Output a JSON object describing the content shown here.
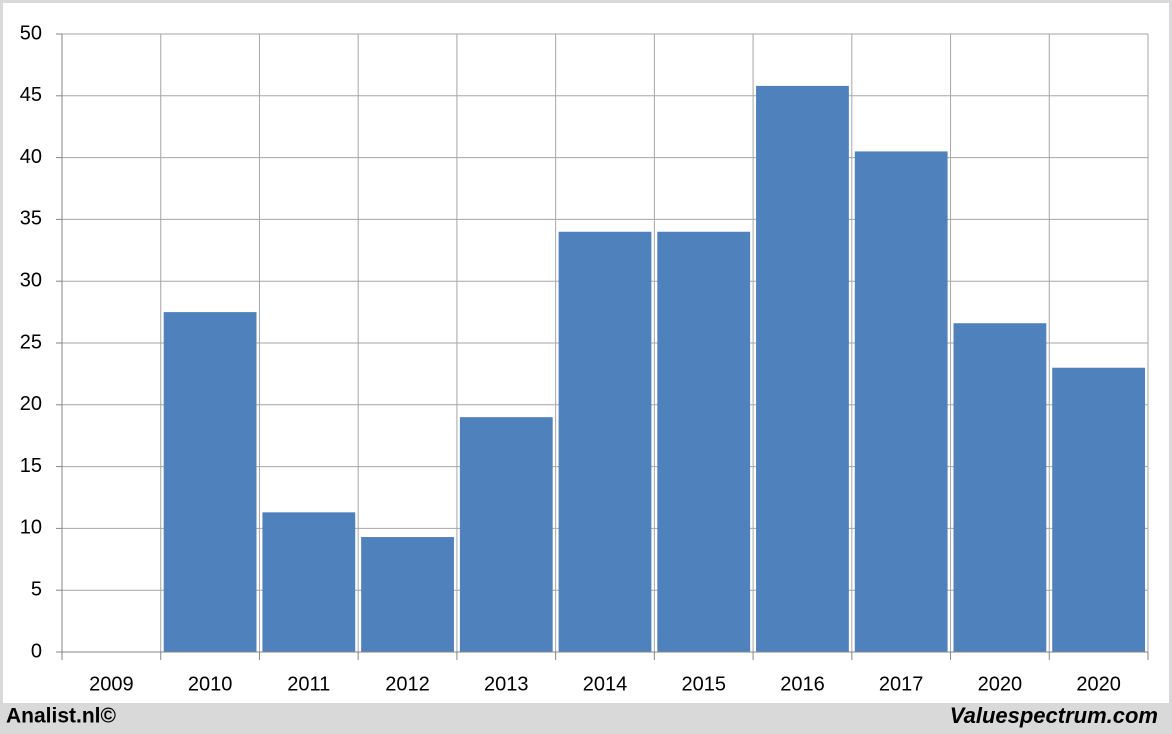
{
  "chart_data": {
    "type": "bar",
    "categories": [
      "2009",
      "2010",
      "2011",
      "2012",
      "2013",
      "2014",
      "2015",
      "2016",
      "2017",
      "2020",
      "2020"
    ],
    "values": [
      null,
      27.5,
      11.3,
      9.3,
      19,
      34,
      34,
      45.8,
      40.5,
      26.6,
      23
    ],
    "color": "#4f81bd",
    "ylim": [
      0,
      50
    ],
    "yticks": [
      0,
      5,
      10,
      15,
      20,
      25,
      30,
      35,
      40,
      45,
      50
    ],
    "grid": true,
    "footer_left": "Analist.nl©",
    "footer_right": "Valuespectrum.com"
  }
}
